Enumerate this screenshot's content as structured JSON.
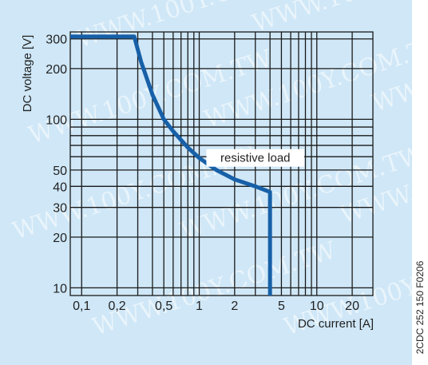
{
  "colors": {
    "panel": "#cfe7f7",
    "grid": "#1a1a1a",
    "curve": "#1760a8",
    "text": "#222222",
    "watermark": "#ffffff"
  },
  "watermark_text": "WWW.100Y.COM.TW",
  "figure_code": "2CDC 252 150 F0206",
  "chart_data": {
    "type": "line",
    "x_scale": "log",
    "y_scale": "log",
    "xlabel": "DC current [A]",
    "ylabel": "DC voltage [V]",
    "xlim": [
      0.08,
      30
    ],
    "ylim": [
      9,
      330
    ],
    "grid": true,
    "x_gridlines": [
      0.1,
      0.2,
      0.3,
      0.4,
      0.5,
      0.6,
      0.7,
      0.8,
      0.9,
      1,
      2,
      3,
      4,
      5,
      6,
      7,
      8,
      9,
      10,
      20
    ],
    "y_gridlines": [
      10,
      20,
      30,
      40,
      50,
      60,
      70,
      80,
      90,
      100,
      200,
      300
    ],
    "x_ticks": [
      {
        "value": 0.1,
        "label": "0,1"
      },
      {
        "value": 0.2,
        "label": "0,2"
      },
      {
        "value": 0.5,
        "label": "0,5"
      },
      {
        "value": 1,
        "label": "1"
      },
      {
        "value": 2,
        "label": "2"
      },
      {
        "value": 5,
        "label": "5"
      },
      {
        "value": 10,
        "label": "10"
      },
      {
        "value": 20,
        "label": "20"
      }
    ],
    "y_ticks": [
      {
        "value": 10,
        "label": "10"
      },
      {
        "value": 20,
        "label": "20"
      },
      {
        "value": 30,
        "label": "30"
      },
      {
        "value": 40,
        "label": "40"
      },
      {
        "value": 50,
        "label": "50"
      },
      {
        "value": 100,
        "label": "100"
      },
      {
        "value": 200,
        "label": "200"
      },
      {
        "value": 300,
        "label": "300"
      }
    ],
    "series": [
      {
        "name": "resistive load",
        "x": [
          0.08,
          0.28,
          0.32,
          0.4,
          0.5,
          0.6,
          0.8,
          1.0,
          1.4,
          2.0,
          3.0,
          4.0,
          4.0
        ],
        "y": [
          310,
          310,
          220,
          140,
          100,
          85,
          68,
          59,
          50,
          44,
          40,
          37,
          9
        ]
      }
    ],
    "annotation": {
      "text": "resistive load",
      "x": 3.0,
      "y": 59
    }
  }
}
